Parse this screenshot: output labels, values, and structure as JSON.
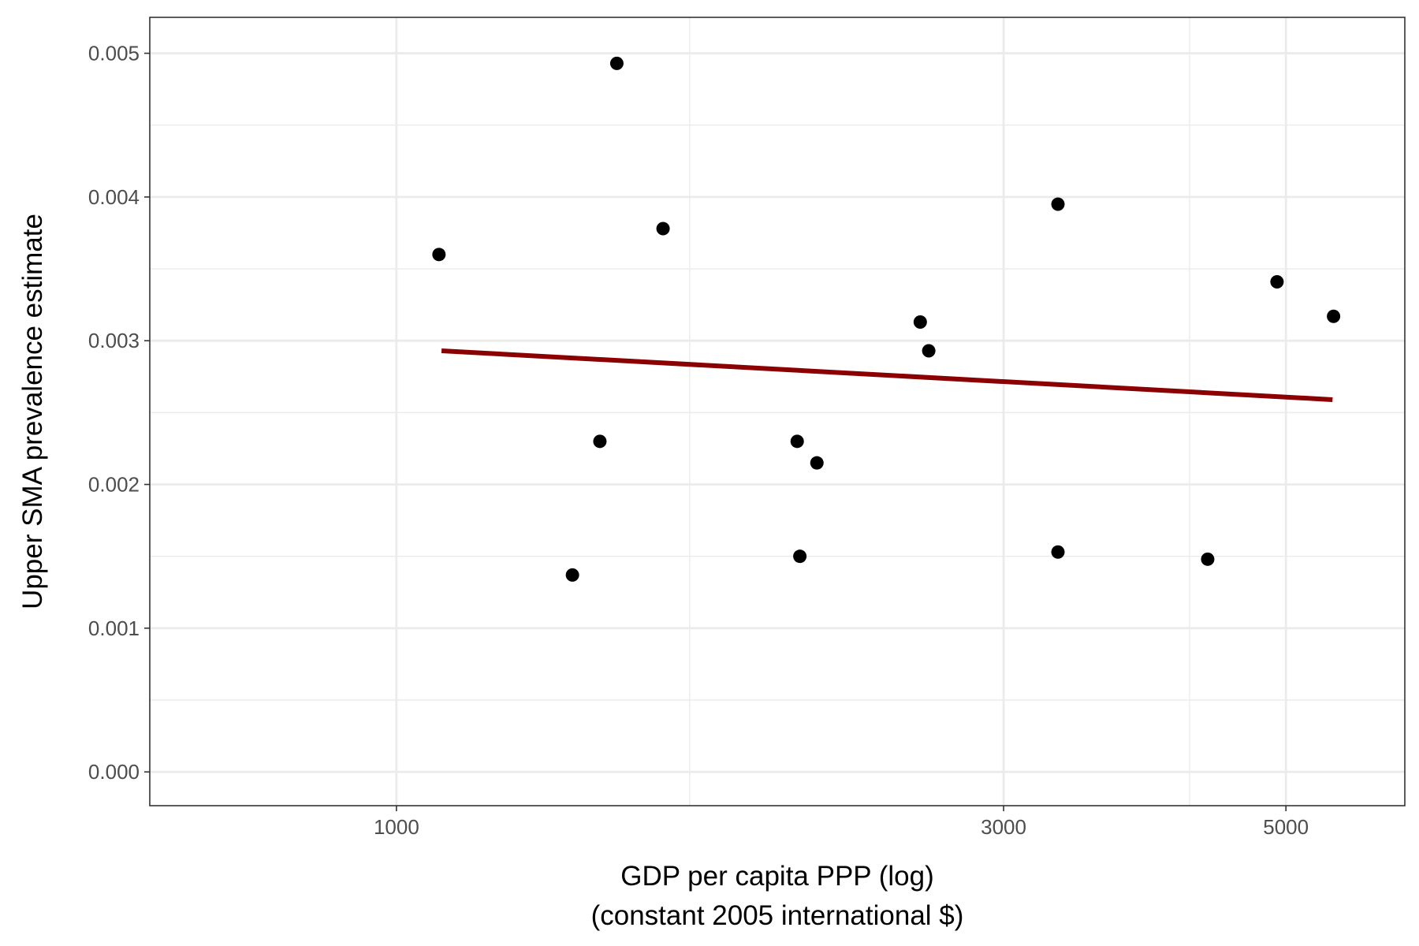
{
  "chart_data": {
    "type": "scatter",
    "title": "",
    "xlabel_line1": "GDP per capita PPP (log)",
    "xlabel_line2": "(constant 2005 international $)",
    "ylabel": "Upper SMA prevalence estimate",
    "x_scale": "log",
    "xlim": [
      640,
      6200
    ],
    "ylim": [
      -0.000235,
      0.00525
    ],
    "x_major_ticks": [
      1000,
      3000,
      5000
    ],
    "x_tick_labels": [
      "1000",
      "3000",
      "5000"
    ],
    "x_minor_grid": [
      1700,
      4200
    ],
    "y_major_ticks": [
      0.0,
      0.001,
      0.002,
      0.003,
      0.004,
      0.005
    ],
    "y_tick_labels": [
      "0.000",
      "0.001",
      "0.002",
      "0.003",
      "0.004",
      "0.005"
    ],
    "y_minor_grid": [
      0.0005,
      0.0015,
      0.0025,
      0.0035,
      0.0045
    ],
    "grid": true,
    "points": [
      {
        "x": 1080,
        "y": 0.0036
      },
      {
        "x": 1375,
        "y": 0.00137
      },
      {
        "x": 1445,
        "y": 0.0023
      },
      {
        "x": 1490,
        "y": 0.00493
      },
      {
        "x": 1620,
        "y": 0.00378
      },
      {
        "x": 2065,
        "y": 0.0023
      },
      {
        "x": 2075,
        "y": 0.0015
      },
      {
        "x": 2140,
        "y": 0.00215
      },
      {
        "x": 2580,
        "y": 0.00313
      },
      {
        "x": 2620,
        "y": 0.00293
      },
      {
        "x": 3310,
        "y": 0.00395
      },
      {
        "x": 3310,
        "y": 0.00153
      },
      {
        "x": 4340,
        "y": 0.00148
      },
      {
        "x": 4920,
        "y": 0.00341
      },
      {
        "x": 5450,
        "y": 0.00317
      }
    ],
    "trend_line": {
      "x": [
        1085,
        5440
      ],
      "y": [
        0.00293,
        0.00259
      ]
    },
    "colors": {
      "points": "#000000",
      "trend": "#8b0000",
      "grid": "#ebebeb",
      "panel_border": "#333333"
    }
  }
}
